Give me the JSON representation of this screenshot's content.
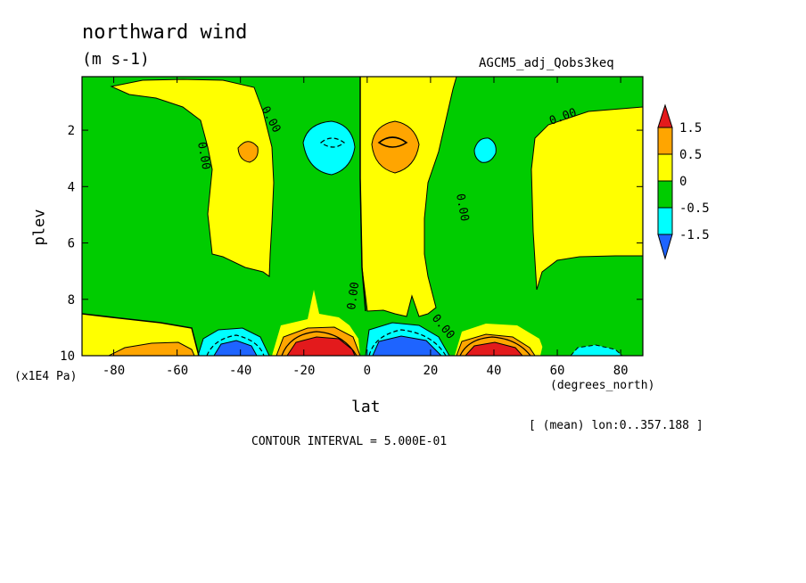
{
  "chart_data": {
    "type": "contour",
    "title": "northward wind",
    "units": "(m s-1)",
    "run_label": "AGCM5_adj_Qobs3keq",
    "xlabel": "lat",
    "x_units": "(degrees_north)",
    "ylabel": "plev",
    "y_units": "(x1E4 Pa)",
    "xlim": [
      -90,
      87
    ],
    "ylim": [
      10,
      0.1
    ],
    "x_ticks": [
      "-80",
      "-60",
      "-40",
      "-20",
      "0",
      "20",
      "40",
      "60",
      "80"
    ],
    "y_ticks": [
      "2",
      "4",
      "6",
      "8",
      "10"
    ],
    "region_label": "[ (mean) lon:0..357.188 ]",
    "contour_interval": "CONTOUR INTERVAL = 5.000E-01",
    "contour_label": "0.00",
    "colorbar": {
      "labels": [
        "1.5",
        "0.5",
        "0",
        "-0.5",
        "-1.5"
      ],
      "colors": [
        "#e31a1c",
        "#ffa500",
        "#ffff00",
        "#00cc00",
        "#00ffff",
        "#1e64ff"
      ]
    },
    "colors": {
      "strong_neg": "#1e64ff",
      "neg": "#00ffff",
      "weak_neg": "#00cc00",
      "weak_pos": "#ffff00",
      "pos": "#ffa500",
      "strong_pos": "#e31a1c"
    }
  }
}
